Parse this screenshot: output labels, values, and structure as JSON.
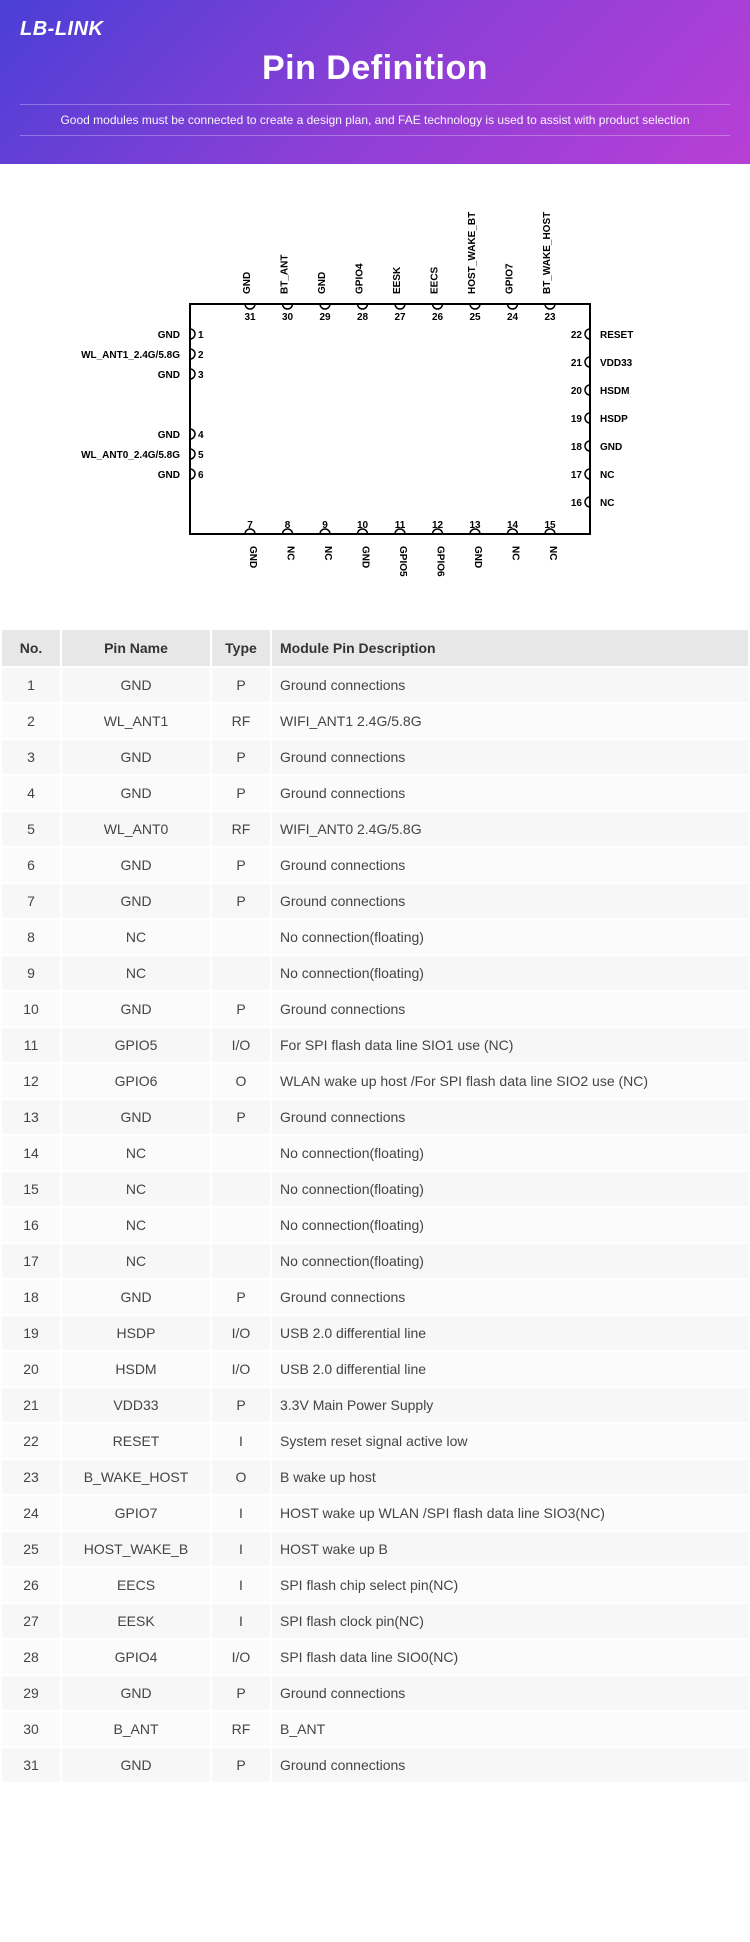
{
  "header": {
    "logo": "LB-LINK",
    "title": "Pin Definition",
    "subtitle": "Good modules must be connected to create a design plan, and FAE technology is used to assist with product selection"
  },
  "diagram": {
    "outline_color": "#000000",
    "bg_color": "#ffffff",
    "left_pins": [
      {
        "num": "1",
        "label": "GND"
      },
      {
        "num": "2",
        "label": "WL_ANT1_2.4G/5.8G"
      },
      {
        "num": "3",
        "label": "GND"
      },
      {
        "num": "4",
        "label": "GND"
      },
      {
        "num": "5",
        "label": "WL_ANT0_2.4G/5.8G"
      },
      {
        "num": "6",
        "label": "GND"
      }
    ],
    "bottom_pins": [
      {
        "num": "7",
        "label": "GND"
      },
      {
        "num": "8",
        "label": "NC"
      },
      {
        "num": "9",
        "label": "NC"
      },
      {
        "num": "10",
        "label": "GND"
      },
      {
        "num": "11",
        "label": "GPIO5"
      },
      {
        "num": "12",
        "label": "GPIO6"
      },
      {
        "num": "13",
        "label": "GND"
      },
      {
        "num": "14",
        "label": "NC"
      },
      {
        "num": "15",
        "label": "NC"
      }
    ],
    "right_pins": [
      {
        "num": "22",
        "label": "RESET"
      },
      {
        "num": "21",
        "label": "VDD33"
      },
      {
        "num": "20",
        "label": "HSDM"
      },
      {
        "num": "19",
        "label": "HSDP"
      },
      {
        "num": "18",
        "label": "GND"
      },
      {
        "num": "17",
        "label": "NC"
      },
      {
        "num": "16",
        "label": "NC"
      }
    ],
    "top_pins": [
      {
        "num": "31",
        "label": "GND"
      },
      {
        "num": "30",
        "label": "BT_ANT"
      },
      {
        "num": "29",
        "label": "GND"
      },
      {
        "num": "28",
        "label": "GPIO4"
      },
      {
        "num": "27",
        "label": "EESK"
      },
      {
        "num": "26",
        "label": "EECS"
      },
      {
        "num": "25",
        "label": "HOST_WAKE_BT"
      },
      {
        "num": "24",
        "label": "GPIO7"
      },
      {
        "num": "23",
        "label": "BT_WAKE_HOST"
      }
    ]
  },
  "table": {
    "headers": {
      "no": "No.",
      "name": "Pin Name",
      "type": "Type",
      "desc": "Module Pin Description"
    },
    "rows": [
      {
        "no": "1",
        "name": "GND",
        "type": "P",
        "desc": "Ground connections"
      },
      {
        "no": "2",
        "name": "WL_ANT1",
        "type": "RF",
        "desc": "WIFI_ANT1 2.4G/5.8G"
      },
      {
        "no": "3",
        "name": "GND",
        "type": "P",
        "desc": "Ground connections"
      },
      {
        "no": "4",
        "name": "GND",
        "type": "P",
        "desc": "Ground connections"
      },
      {
        "no": "5",
        "name": "WL_ANT0",
        "type": "RF",
        "desc": "WIFI_ANT0 2.4G/5.8G"
      },
      {
        "no": "6",
        "name": "GND",
        "type": "P",
        "desc": "Ground connections"
      },
      {
        "no": "7",
        "name": "GND",
        "type": "P",
        "desc": "Ground connections"
      },
      {
        "no": "8",
        "name": "NC",
        "type": "",
        "desc": "No connection(floating)"
      },
      {
        "no": "9",
        "name": "NC",
        "type": "",
        "desc": "No connection(floating)"
      },
      {
        "no": "10",
        "name": "GND",
        "type": "P",
        "desc": "Ground connections"
      },
      {
        "no": "11",
        "name": "GPIO5",
        "type": "I/O",
        "desc": "For SPI flash data line SIO1 use (NC)"
      },
      {
        "no": "12",
        "name": "GPIO6",
        "type": "O",
        "desc": "WLAN wake up host /For SPI flash data line SIO2 use (NC)"
      },
      {
        "no": "13",
        "name": "GND",
        "type": "P",
        "desc": "Ground connections"
      },
      {
        "no": "14",
        "name": "NC",
        "type": "",
        "desc": "No connection(floating)"
      },
      {
        "no": "15",
        "name": "NC",
        "type": "",
        "desc": "No connection(floating)"
      },
      {
        "no": "16",
        "name": "NC",
        "type": "",
        "desc": "No connection(floating)"
      },
      {
        "no": "17",
        "name": "NC",
        "type": "",
        "desc": "No connection(floating)"
      },
      {
        "no": "18",
        "name": "GND",
        "type": "P",
        "desc": "Ground connections"
      },
      {
        "no": "19",
        "name": "HSDP",
        "type": "I/O",
        "desc": "USB 2.0 differential line"
      },
      {
        "no": "20",
        "name": "HSDM",
        "type": "I/O",
        "desc": "USB 2.0 differential line"
      },
      {
        "no": "21",
        "name": "VDD33",
        "type": "P",
        "desc": "3.3V Main Power Supply"
      },
      {
        "no": "22",
        "name": "RESET",
        "type": "I",
        "desc": "System reset signal active low"
      },
      {
        "no": "23",
        "name": "B_WAKE_HOST",
        "type": "O",
        "desc": "B wake up host"
      },
      {
        "no": "24",
        "name": "GPIO7",
        "type": "I",
        "desc": "HOST wake up WLAN /SPI flash data line SIO3(NC)"
      },
      {
        "no": "25",
        "name": "HOST_WAKE_B",
        "type": "I",
        "desc": "HOST wake up B"
      },
      {
        "no": "26",
        "name": "EECS",
        "type": "I",
        "desc": "SPI flash chip select pin(NC)"
      },
      {
        "no": "27",
        "name": "EESK",
        "type": "I",
        "desc": "SPI flash clock pin(NC)"
      },
      {
        "no": "28",
        "name": "GPIO4",
        "type": "I/O",
        "desc": "SPI flash data line SIO0(NC)"
      },
      {
        "no": "29",
        "name": "GND",
        "type": "P",
        "desc": "Ground connections"
      },
      {
        "no": "30",
        "name": "B_ANT",
        "type": "RF",
        "desc": "B_ANT"
      },
      {
        "no": "31",
        "name": "GND",
        "type": "P",
        "desc": "Ground connections"
      }
    ]
  }
}
